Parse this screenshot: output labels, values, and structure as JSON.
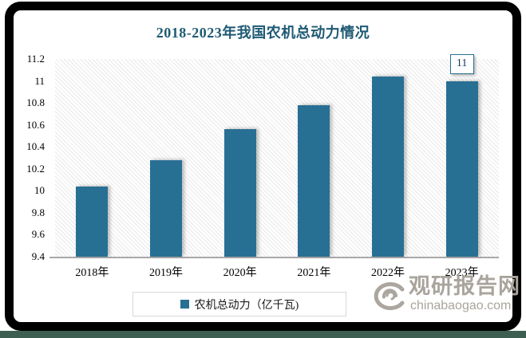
{
  "title": "2018-2023年我国农机总动力情况",
  "legend": {
    "label": "农机总动力（亿千瓦)",
    "marker_color": "#286F94"
  },
  "watermark": {
    "icon": "swirl-logo-icon",
    "site_name": "观研报告网",
    "site_url": "chinabaogao.com",
    "color": "#A9A49C"
  },
  "colors": {
    "bar": "#286F94",
    "title_text": "#1E5A74",
    "axis_line": "#A8A8A8",
    "hatch_line": "#E8E8E8",
    "tick_text": "#000000",
    "data_label_text": "#17375E",
    "data_label_border": "#286F94",
    "legend_border": "#D9D9D9",
    "frame": "#000000",
    "bottom_strip": "#3D5F52"
  },
  "chart_data": {
    "type": "bar",
    "title": "2018-2023年我国农机总动力情况",
    "categories": [
      "2018年",
      "2019年",
      "2020年",
      "2021年",
      "2022年",
      "2023年"
    ],
    "series": [
      {
        "name": "农机总动力（亿千瓦)",
        "values": [
          10.04,
          10.28,
          10.56,
          10.78,
          11.04,
          11
        ]
      }
    ],
    "data_labels": [
      null,
      null,
      null,
      null,
      null,
      "11"
    ],
    "xlabel": "",
    "ylabel": "",
    "ylim": [
      9.4,
      11.2
    ],
    "yticks": [
      "9.4",
      "9.6",
      "9.8",
      "10",
      "10.2",
      "10.4",
      "10.6",
      "10.8",
      "11",
      "11.2"
    ],
    "grid": false,
    "legend_position": "bottom",
    "plot_background": "diagonal-hatch"
  }
}
